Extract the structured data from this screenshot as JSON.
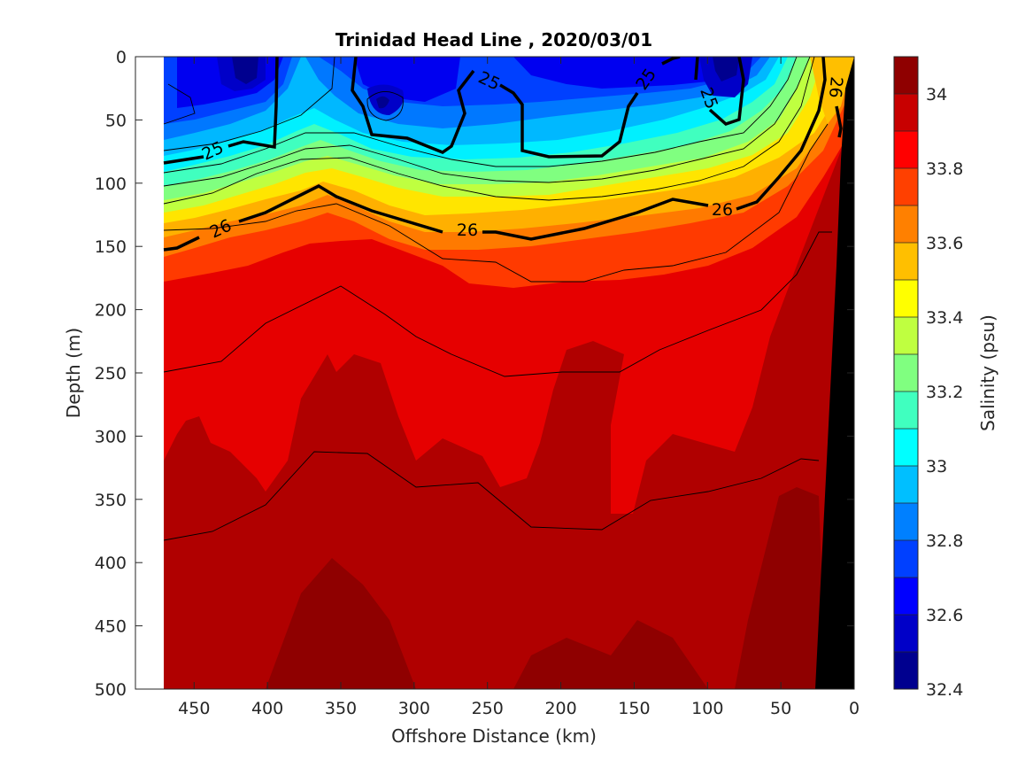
{
  "chart_data": {
    "type": "heatmap",
    "subtype": "filled-contour",
    "title": "Trinidad Head Line , 2020/03/01",
    "xlabel": "Offshore Distance (km)",
    "ylabel": "Depth (m)",
    "xlim": [
      490,
      0
    ],
    "ylim": [
      500,
      0
    ],
    "x_reversed": true,
    "y_reversed": true,
    "x_ticks": [
      "450",
      "400",
      "350",
      "300",
      "250",
      "200",
      "150",
      "100",
      "50",
      "0"
    ],
    "y_ticks": [
      "0",
      "50",
      "100",
      "150",
      "200",
      "250",
      "300",
      "350",
      "400",
      "450",
      "500"
    ],
    "data_x_range": [
      470,
      0
    ],
    "colormap": "jet",
    "colorbar": {
      "label": "Salinity (psu)",
      "range": [
        32.4,
        34.1
      ],
      "ticks": [
        "32.4",
        "32.6",
        "32.8",
        "33",
        "33.2",
        "33.4",
        "33.6",
        "33.8",
        "34"
      ],
      "levels": [
        32.4,
        32.5,
        32.6,
        32.7,
        32.8,
        32.9,
        33.0,
        33.1,
        33.2,
        33.3,
        33.4,
        33.5,
        33.6,
        33.7,
        33.8,
        33.9,
        34.0,
        34.1
      ],
      "colors": [
        "#00008f",
        "#0000c8",
        "#0000ff",
        "#0040ff",
        "#0080ff",
        "#00bfff",
        "#00ffff",
        "#40ffbf",
        "#80ff80",
        "#bfff40",
        "#ffff00",
        "#ffbf00",
        "#ff8000",
        "#ff4000",
        "#ff0000",
        "#c80000",
        "#8f0000"
      ]
    },
    "density_contours": [
      {
        "label": "25",
        "depth_km": [
          [
            470,
            84
          ],
          [
            400,
            70
          ],
          [
            385,
            50
          ],
          [
            380,
            0
          ]
        ]
      },
      {
        "label": "25",
        "depth_km": [
          [
            370,
            0
          ],
          [
            360,
            60
          ],
          [
            300,
            60
          ],
          [
            275,
            70
          ],
          [
            262,
            35
          ],
          [
            240,
            15
          ],
          [
            220,
            80
          ],
          [
            180,
            80
          ],
          [
            150,
            72
          ],
          [
            135,
            50
          ],
          [
            115,
            0
          ]
        ]
      },
      {
        "label": "25",
        "depth_km": [
          [
            105,
            0
          ],
          [
            100,
            30
          ],
          [
            90,
            55
          ],
          [
            80,
            40
          ],
          [
            78,
            0
          ]
        ]
      },
      {
        "label": "26",
        "depth_km": [
          [
            470,
            152
          ],
          [
            430,
            128
          ],
          [
            400,
            123
          ],
          [
            370,
            104
          ],
          [
            310,
            128
          ],
          [
            270,
            138
          ],
          [
            215,
            145
          ],
          [
            135,
            122
          ],
          [
            75,
            116
          ],
          [
            50,
            100
          ],
          [
            25,
            60
          ],
          [
            20,
            0
          ]
        ]
      },
      {
        "label": "26",
        "depth_km": [
          [
            13,
            0
          ],
          [
            12,
            65
          ]
        ]
      }
    ],
    "bathymetry": "bottom at ~0 km coast, sloping to 500 m near 25 km"
  }
}
